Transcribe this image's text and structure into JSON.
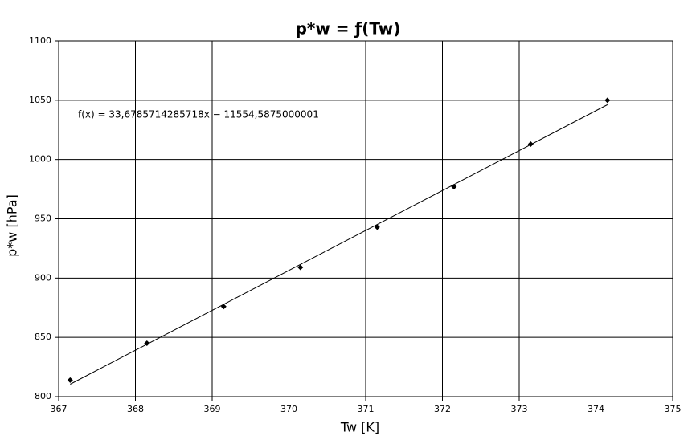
{
  "chart_data": {
    "type": "scatter",
    "title": "p*w = ƒ(Tw)",
    "x_label": "Tw [K]",
    "y_label": "p*w [hPa]",
    "series": [
      {
        "color": "#000000",
        "x": [
          367.15,
          368.15,
          369.15,
          370.15,
          371.15,
          372.15,
          373.15,
          374.15
        ],
        "values": [
          814,
          845,
          876,
          909,
          943,
          977,
          1013,
          1050
        ]
      }
    ],
    "trendline": {
      "label": "f(x) = 33,6785714285718x − 11554,5875000001",
      "color": "#000000",
      "x": [
        367.15,
        374.15
      ],
      "values": [
        810.5,
        1046.25
      ]
    },
    "xlim": [
      367,
      375
    ],
    "xticks": [
      367,
      368,
      369,
      370,
      371,
      372,
      373,
      374,
      375
    ],
    "ylim": [
      800,
      1100
    ],
    "yticks": [
      800,
      850,
      900,
      950,
      1000,
      1050,
      1100
    ],
    "grid": true
  }
}
